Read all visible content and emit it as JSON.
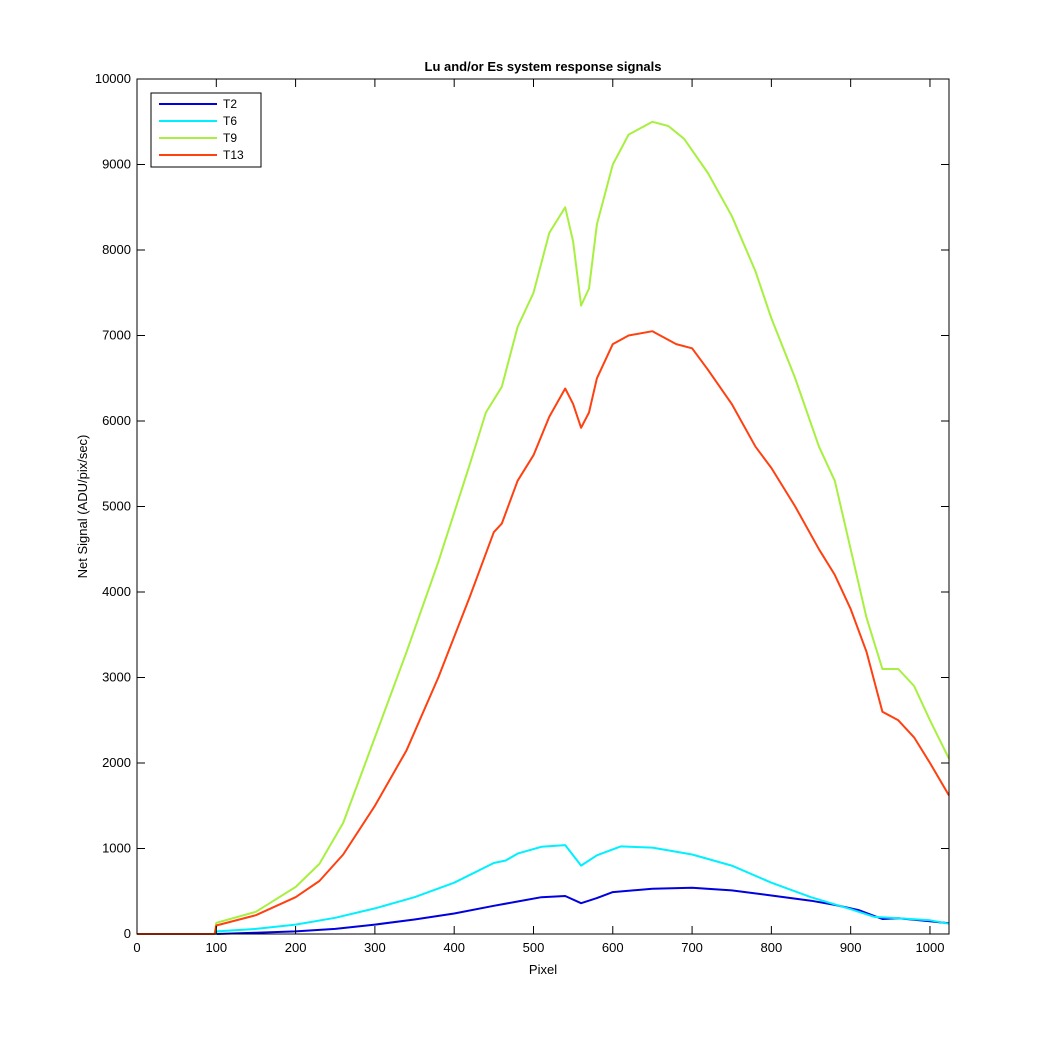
{
  "chart_data": {
    "type": "line",
    "title": "Lu and/or Es system response signals",
    "xlabel": "Pixel",
    "ylabel": "Net Signal (ADU/pix/sec)",
    "xlim": [
      0,
      1024
    ],
    "ylim": [
      0,
      10000
    ],
    "xticks": [
      0,
      100,
      200,
      300,
      400,
      500,
      600,
      700,
      800,
      900,
      1000
    ],
    "yticks": [
      0,
      1000,
      2000,
      3000,
      4000,
      5000,
      6000,
      7000,
      8000,
      9000,
      10000
    ],
    "grid": false,
    "legend_position": "top-left",
    "series": [
      {
        "name": "T2",
        "color": "#0000e0",
        "points": [
          [
            0,
            0
          ],
          [
            100,
            0
          ],
          [
            150,
            15
          ],
          [
            200,
            30
          ],
          [
            250,
            60
          ],
          [
            300,
            110
          ],
          [
            350,
            170
          ],
          [
            400,
            240
          ],
          [
            450,
            330
          ],
          [
            480,
            380
          ],
          [
            510,
            430
          ],
          [
            540,
            445
          ],
          [
            560,
            360
          ],
          [
            580,
            420
          ],
          [
            600,
            490
          ],
          [
            650,
            530
          ],
          [
            700,
            540
          ],
          [
            750,
            510
          ],
          [
            800,
            450
          ],
          [
            850,
            390
          ],
          [
            880,
            340
          ],
          [
            910,
            280
          ],
          [
            940,
            175
          ],
          [
            960,
            185
          ],
          [
            1000,
            150
          ],
          [
            1024,
            125
          ]
        ]
      },
      {
        "name": "T6",
        "color": "#00f0ff",
        "points": [
          [
            0,
            0
          ],
          [
            100,
            0
          ],
          [
            100,
            30
          ],
          [
            150,
            60
          ],
          [
            200,
            110
          ],
          [
            250,
            190
          ],
          [
            300,
            300
          ],
          [
            350,
            430
          ],
          [
            400,
            600
          ],
          [
            450,
            830
          ],
          [
            465,
            860
          ],
          [
            480,
            940
          ],
          [
            510,
            1020
          ],
          [
            540,
            1040
          ],
          [
            560,
            800
          ],
          [
            580,
            920
          ],
          [
            610,
            1025
          ],
          [
            650,
            1010
          ],
          [
            700,
            930
          ],
          [
            750,
            800
          ],
          [
            800,
            600
          ],
          [
            850,
            430
          ],
          [
            900,
            290
          ],
          [
            930,
            200
          ],
          [
            950,
            190
          ],
          [
            1000,
            160
          ],
          [
            1024,
            120
          ]
        ]
      },
      {
        "name": "T9",
        "color": "#a8f040",
        "points": [
          [
            0,
            0
          ],
          [
            98,
            0
          ],
          [
            100,
            130
          ],
          [
            150,
            260
          ],
          [
            200,
            550
          ],
          [
            230,
            820
          ],
          [
            260,
            1300
          ],
          [
            300,
            2300
          ],
          [
            340,
            3300
          ],
          [
            380,
            4350
          ],
          [
            420,
            5500
          ],
          [
            440,
            6100
          ],
          [
            460,
            6400
          ],
          [
            480,
            7100
          ],
          [
            500,
            7500
          ],
          [
            520,
            8200
          ],
          [
            540,
            8500
          ],
          [
            550,
            8100
          ],
          [
            560,
            7350
          ],
          [
            570,
            7550
          ],
          [
            580,
            8300
          ],
          [
            600,
            9000
          ],
          [
            620,
            9350
          ],
          [
            650,
            9500
          ],
          [
            670,
            9450
          ],
          [
            690,
            9300
          ],
          [
            720,
            8900
          ],
          [
            750,
            8400
          ],
          [
            780,
            7750
          ],
          [
            800,
            7200
          ],
          [
            830,
            6500
          ],
          [
            860,
            5700
          ],
          [
            880,
            5300
          ],
          [
            900,
            4500
          ],
          [
            920,
            3700
          ],
          [
            940,
            3100
          ],
          [
            960,
            3100
          ],
          [
            980,
            2900
          ],
          [
            1000,
            2500
          ],
          [
            1024,
            2050
          ]
        ]
      },
      {
        "name": "T13",
        "color": "#ff4010",
        "points": [
          [
            0,
            0
          ],
          [
            98,
            0
          ],
          [
            100,
            100
          ],
          [
            150,
            220
          ],
          [
            200,
            430
          ],
          [
            230,
            620
          ],
          [
            260,
            930
          ],
          [
            300,
            1500
          ],
          [
            340,
            2150
          ],
          [
            380,
            3000
          ],
          [
            420,
            3950
          ],
          [
            450,
            4700
          ],
          [
            460,
            4800
          ],
          [
            480,
            5300
          ],
          [
            500,
            5600
          ],
          [
            520,
            6050
          ],
          [
            540,
            6380
          ],
          [
            550,
            6200
          ],
          [
            560,
            5920
          ],
          [
            570,
            6100
          ],
          [
            580,
            6500
          ],
          [
            600,
            6900
          ],
          [
            620,
            7000
          ],
          [
            650,
            7050
          ],
          [
            680,
            6900
          ],
          [
            700,
            6850
          ],
          [
            720,
            6600
          ],
          [
            750,
            6200
          ],
          [
            780,
            5700
          ],
          [
            800,
            5450
          ],
          [
            830,
            5000
          ],
          [
            860,
            4500
          ],
          [
            880,
            4200
          ],
          [
            900,
            3800
          ],
          [
            920,
            3300
          ],
          [
            940,
            2600
          ],
          [
            960,
            2500
          ],
          [
            980,
            2300
          ],
          [
            1000,
            2000
          ],
          [
            1024,
            1620
          ]
        ]
      }
    ]
  }
}
